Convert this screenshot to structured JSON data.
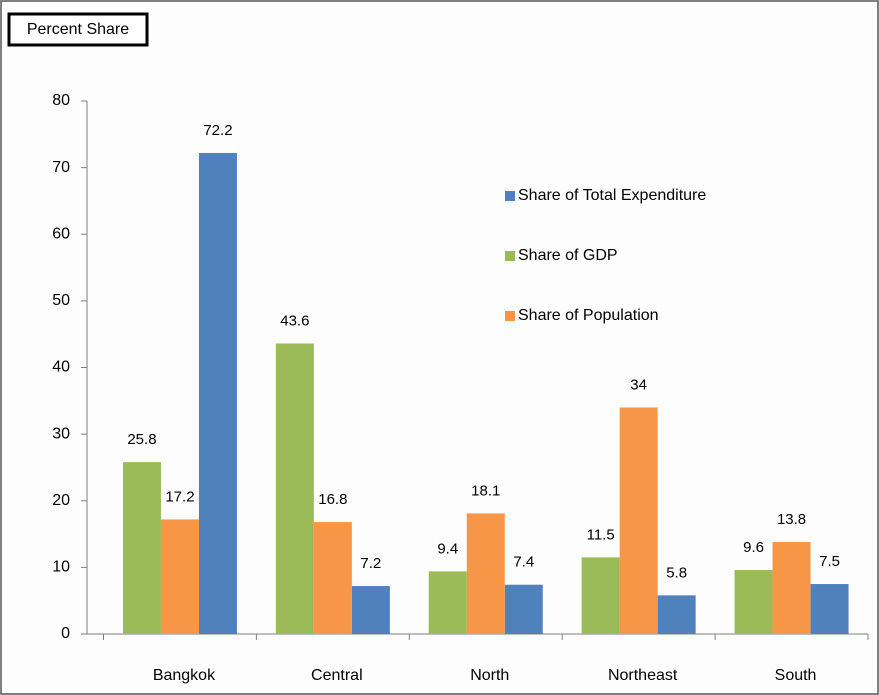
{
  "chart_data": {
    "type": "bar",
    "y_label": "Percent Share",
    "categories": [
      "Bangkok",
      "Central",
      "North",
      "Northeast",
      "South"
    ],
    "series": [
      {
        "name": "Share of Total Expenditure",
        "color": "#4f81bd",
        "values": [
          72.2,
          7.2,
          7.4,
          5.8,
          7.5
        ]
      },
      {
        "name": "Share of GDP",
        "color": "#9bbb59",
        "values": [
          25.8,
          43.6,
          9.4,
          11.5,
          9.6
        ]
      },
      {
        "name": "Share of Population",
        "color": "#f79646",
        "values": [
          17.2,
          16.8,
          18.1,
          34,
          13.8
        ]
      }
    ],
    "ylim": [
      0,
      80
    ],
    "yticks": [
      0,
      10,
      20,
      30,
      40,
      50,
      60,
      70,
      80
    ],
    "grid": false,
    "legend": "upper right"
  }
}
